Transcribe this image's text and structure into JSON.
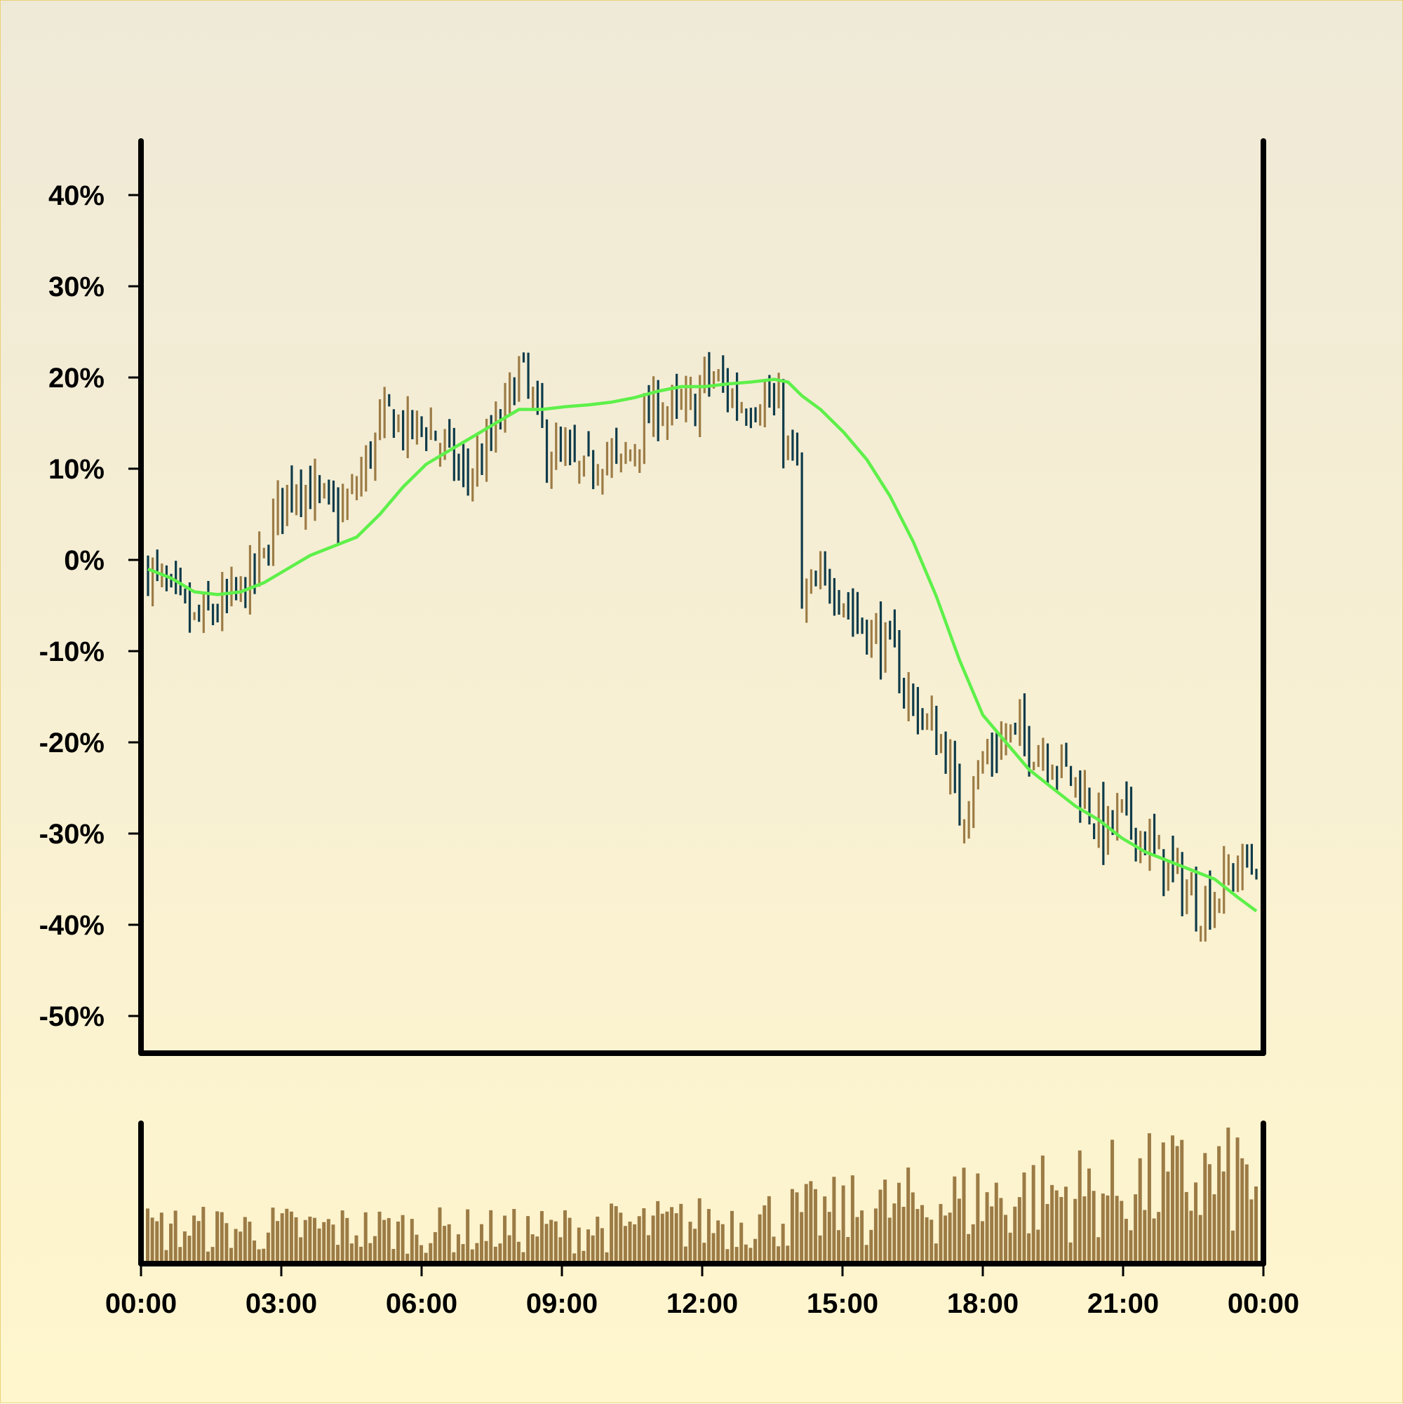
{
  "chart_data": [
    {
      "type": "ohlc",
      "title": "",
      "xlabel": "",
      "ylabel": "",
      "y_unit": "%",
      "ylim": [
        -54,
        46
      ],
      "y_ticks": [
        "40%",
        "30%",
        "20%",
        "10%",
        "0%",
        "-10%",
        "-20%",
        "-30%",
        "-40%",
        "-50%"
      ],
      "y_tick_values": [
        40,
        30,
        20,
        10,
        0,
        -10,
        -20,
        -30,
        -40,
        -50
      ],
      "x_range": [
        "00:00",
        "00:00"
      ],
      "up_color": "#9c7b45",
      "down_color": "#0e3b4a",
      "moving_average_color": "#5ef04a",
      "bar_count": 240,
      "close_path": [
        [
          0,
          -1
        ],
        [
          5,
          -4
        ],
        [
          10,
          -7
        ],
        [
          13,
          -6
        ],
        [
          17,
          -5
        ],
        [
          21,
          -3
        ],
        [
          25,
          0
        ],
        [
          28,
          6
        ],
        [
          32,
          9
        ],
        [
          36,
          7
        ],
        [
          40,
          5
        ],
        [
          43,
          6
        ],
        [
          45,
          8
        ],
        [
          48,
          12
        ],
        [
          52,
          16
        ],
        [
          56,
          14
        ],
        [
          60,
          15
        ],
        [
          64,
          12
        ],
        [
          68,
          9
        ],
        [
          72,
          11
        ],
        [
          75,
          14
        ],
        [
          78,
          18
        ],
        [
          80,
          21
        ],
        [
          83,
          17
        ],
        [
          86,
          12
        ],
        [
          90,
          11
        ],
        [
          94,
          9
        ],
        [
          98,
          12
        ],
        [
          102,
          10
        ],
        [
          106,
          14
        ],
        [
          110,
          17
        ],
        [
          114,
          16
        ],
        [
          118,
          17
        ],
        [
          120,
          20
        ],
        [
          124,
          19
        ],
        [
          128,
          17
        ],
        [
          132,
          18
        ],
        [
          136,
          16
        ],
        [
          138,
          12
        ],
        [
          140,
          10
        ],
        [
          141,
          -5
        ],
        [
          145,
          -3
        ],
        [
          148,
          -2
        ],
        [
          152,
          -6
        ],
        [
          156,
          -8
        ],
        [
          160,
          -10
        ],
        [
          164,
          -15
        ],
        [
          168,
          -18
        ],
        [
          172,
          -21
        ],
        [
          175,
          -28
        ],
        [
          178,
          -24
        ],
        [
          182,
          -21
        ],
        [
          186,
          -19
        ],
        [
          190,
          -20
        ],
        [
          194,
          -21
        ],
        [
          198,
          -23
        ],
        [
          202,
          -26
        ],
        [
          206,
          -30
        ],
        [
          210,
          -28
        ],
        [
          214,
          -30
        ],
        [
          218,
          -33
        ],
        [
          222,
          -35
        ],
        [
          226,
          -38
        ],
        [
          230,
          -37
        ],
        [
          234,
          -34
        ],
        [
          239,
          -33
        ]
      ],
      "moving_average": [
        [
          0,
          -1
        ],
        [
          5,
          -2
        ],
        [
          10,
          -3.5
        ],
        [
          15,
          -3.8
        ],
        [
          20,
          -3.5
        ],
        [
          25,
          -2.5
        ],
        [
          30,
          -1
        ],
        [
          35,
          0.5
        ],
        [
          40,
          1.5
        ],
        [
          45,
          2.5
        ],
        [
          50,
          5
        ],
        [
          55,
          8
        ],
        [
          60,
          10.5
        ],
        [
          65,
          12
        ],
        [
          70,
          13.5
        ],
        [
          75,
          15
        ],
        [
          80,
          16.5
        ],
        [
          85,
          16.5
        ],
        [
          90,
          16.8
        ],
        [
          95,
          17
        ],
        [
          100,
          17.3
        ],
        [
          105,
          17.8
        ],
        [
          110,
          18.5
        ],
        [
          115,
          19
        ],
        [
          120,
          19
        ],
        [
          125,
          19.3
        ],
        [
          130,
          19.5
        ],
        [
          135,
          19.8
        ],
        [
          138,
          19.5
        ],
        [
          141,
          18
        ],
        [
          145,
          16.5
        ],
        [
          150,
          14
        ],
        [
          155,
          11
        ],
        [
          160,
          7
        ],
        [
          165,
          2
        ],
        [
          170,
          -4
        ],
        [
          175,
          -11
        ],
        [
          180,
          -17
        ],
        [
          185,
          -20
        ],
        [
          190,
          -23
        ],
        [
          195,
          -25
        ],
        [
          200,
          -27
        ],
        [
          205,
          -28.5
        ],
        [
          210,
          -30.5
        ],
        [
          215,
          -32
        ],
        [
          220,
          -33
        ],
        [
          225,
          -34
        ],
        [
          230,
          -35
        ],
        [
          235,
          -37
        ],
        [
          239,
          -38.5
        ]
      ]
    },
    {
      "type": "bar",
      "title": "",
      "x_ticks": [
        "00:00",
        "03:00",
        "06:00",
        "09:00",
        "12:00",
        "15:00",
        "18:00",
        "21:00",
        "00:00"
      ],
      "bar_color": "#9c7b45",
      "bar_count": 240,
      "volume_profile": [
        [
          0,
          0.3
        ],
        [
          40,
          0.3
        ],
        [
          80,
          0.28
        ],
        [
          120,
          0.35
        ],
        [
          150,
          0.45
        ],
        [
          180,
          0.55
        ],
        [
          210,
          0.65
        ],
        [
          239,
          0.75
        ]
      ]
    }
  ]
}
